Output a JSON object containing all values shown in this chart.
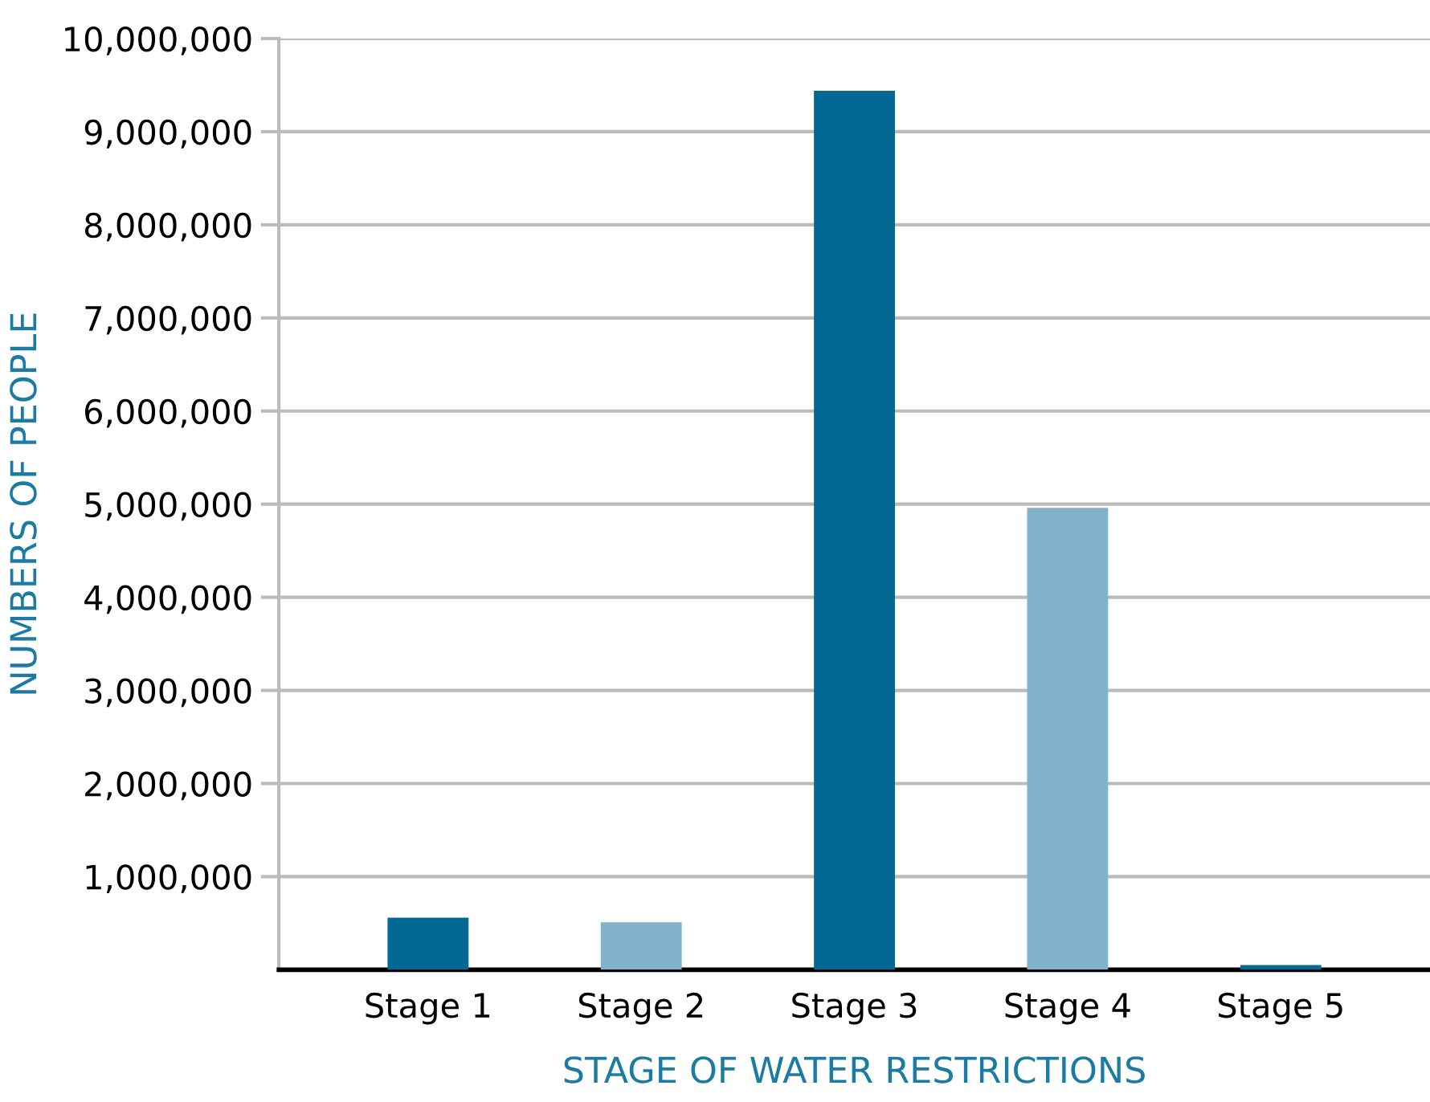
{
  "chart_data": {
    "type": "bar",
    "xlabel": "STAGE OF WATER RESTRICTIONS",
    "ylabel": "NUMBERS OF PEOPLE",
    "categories": [
      "Stage 1",
      "Stage 2",
      "Stage 3",
      "Stage 4",
      "Stage 5"
    ],
    "values": [
      560000,
      510000,
      9440000,
      4960000,
      50000
    ],
    "colors": [
      "#036893",
      "#80b2c9",
      "#036893",
      "#80b2c9",
      "#036893"
    ],
    "ylim": [
      0,
      10000000
    ],
    "yticks": [
      {
        "value": 1000000,
        "label": "1,000,000"
      },
      {
        "value": 2000000,
        "label": "2,000,000"
      },
      {
        "value": 3000000,
        "label": "3,000,000"
      },
      {
        "value": 4000000,
        "label": "4,000,000"
      },
      {
        "value": 5000000,
        "label": "5,000,000"
      },
      {
        "value": 6000000,
        "label": "6,000,000"
      },
      {
        "value": 7000000,
        "label": "7,000,000"
      },
      {
        "value": 8000000,
        "label": "8,000,000"
      },
      {
        "value": 9000000,
        "label": "9,000,000"
      },
      {
        "value": 10000000,
        "label": "10,000,000"
      }
    ],
    "grid": "y",
    "legend": false
  }
}
